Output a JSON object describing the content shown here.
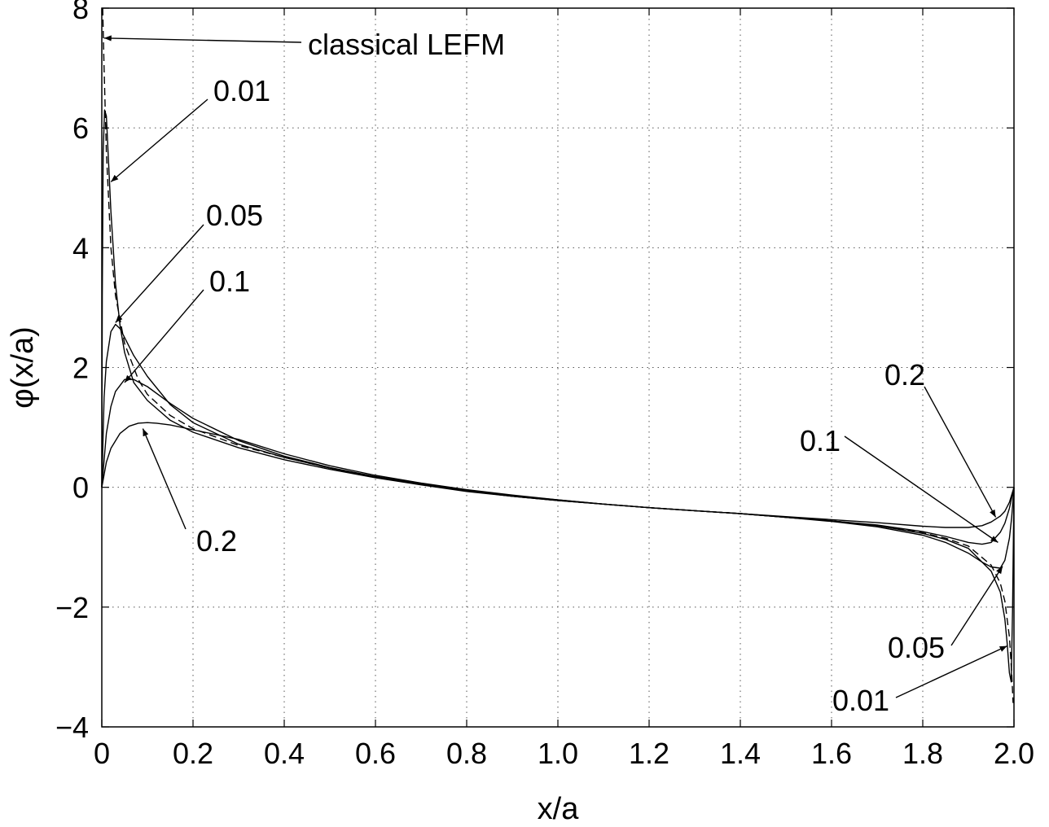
{
  "chart_data": {
    "type": "line",
    "xlabel": "x/a",
    "ylabel": "φ(x/a)",
    "xlim": [
      0,
      2
    ],
    "ylim": [
      -4,
      8
    ],
    "grid": true,
    "x_ticks": [
      {
        "value": 0,
        "label": "0"
      },
      {
        "value": 0.2,
        "label": "0.2"
      },
      {
        "value": 0.4,
        "label": "0.4"
      },
      {
        "value": 0.6,
        "label": "0.6"
      },
      {
        "value": 0.8,
        "label": "0.8"
      },
      {
        "value": 1.0,
        "label": "1.0"
      },
      {
        "value": 1.2,
        "label": "1.2"
      },
      {
        "value": 1.4,
        "label": "1.4"
      },
      {
        "value": 1.6,
        "label": "1.6"
      },
      {
        "value": 1.8,
        "label": "1.8"
      },
      {
        "value": 2.0,
        "label": "2.0"
      }
    ],
    "y_ticks": [
      {
        "value": 8,
        "label": "8"
      },
      {
        "value": 6,
        "label": "6"
      },
      {
        "value": 4,
        "label": "4"
      },
      {
        "value": 2,
        "label": "2"
      },
      {
        "value": 0,
        "label": "0"
      },
      {
        "value": -2,
        "label": "−2"
      },
      {
        "value": -4,
        "label": "−4"
      }
    ],
    "series": [
      {
        "key": "lefm",
        "style": "dashed",
        "x": [
          0.002,
          0.005,
          0.01,
          0.02,
          0.03,
          0.05,
          0.08,
          0.1,
          0.15,
          0.2,
          0.3,
          0.4,
          0.5,
          0.6,
          0.7,
          0.8,
          0.9,
          1.0,
          1.1,
          1.2,
          1.3,
          1.4,
          1.5,
          1.6,
          1.7,
          1.8,
          1.85,
          1.9,
          1.95,
          1.97,
          1.98,
          1.99,
          1.995,
          1.998
        ],
        "y": [
          8.0,
          7.0,
          5.6,
          4.0,
          3.2,
          2.4,
          1.8,
          1.55,
          1.2,
          0.98,
          0.7,
          0.5,
          0.32,
          0.17,
          0.05,
          -0.06,
          -0.15,
          -0.22,
          -0.28,
          -0.34,
          -0.39,
          -0.44,
          -0.5,
          -0.56,
          -0.64,
          -0.76,
          -0.85,
          -0.98,
          -1.3,
          -1.6,
          -1.9,
          -2.5,
          -3.1,
          -3.6
        ]
      },
      {
        "key": "0.01",
        "style": "solid",
        "x": [
          0.0,
          0.001,
          0.003,
          0.006,
          0.01,
          0.015,
          0.02,
          0.03,
          0.04,
          0.05,
          0.07,
          0.1,
          0.15,
          0.2,
          0.3,
          0.4,
          0.5,
          0.6,
          0.7,
          0.8,
          0.9,
          1.0,
          1.1,
          1.2,
          1.3,
          1.4,
          1.5,
          1.6,
          1.7,
          1.8,
          1.85,
          1.9,
          1.95,
          1.97,
          1.98,
          1.985,
          1.99,
          1.994,
          1.997,
          2.0
        ],
        "y": [
          0.0,
          3.2,
          5.6,
          6.3,
          6.2,
          5.4,
          4.6,
          3.4,
          2.7,
          2.25,
          1.75,
          1.45,
          1.12,
          0.92,
          0.66,
          0.46,
          0.3,
          0.16,
          0.04,
          -0.07,
          -0.15,
          -0.22,
          -0.28,
          -0.34,
          -0.39,
          -0.44,
          -0.5,
          -0.56,
          -0.64,
          -0.77,
          -0.87,
          -1.02,
          -1.4,
          -1.75,
          -2.2,
          -2.6,
          -3.1,
          -3.25,
          -2.0,
          0.0
        ]
      },
      {
        "key": "0.05",
        "style": "solid",
        "x": [
          0.0,
          0.005,
          0.01,
          0.02,
          0.03,
          0.04,
          0.05,
          0.07,
          0.1,
          0.15,
          0.2,
          0.3,
          0.4,
          0.5,
          0.6,
          0.7,
          0.8,
          0.9,
          1.0,
          1.1,
          1.2,
          1.3,
          1.4,
          1.5,
          1.6,
          1.7,
          1.8,
          1.85,
          1.9,
          1.93,
          1.95,
          1.97,
          1.98,
          1.99,
          1.995,
          2.0
        ],
        "y": [
          0.0,
          1.5,
          2.1,
          2.6,
          2.72,
          2.65,
          2.5,
          2.2,
          1.85,
          1.38,
          1.08,
          0.72,
          0.5,
          0.32,
          0.17,
          0.05,
          -0.06,
          -0.15,
          -0.22,
          -0.28,
          -0.34,
          -0.39,
          -0.44,
          -0.5,
          -0.57,
          -0.66,
          -0.8,
          -0.92,
          -1.1,
          -1.25,
          -1.33,
          -1.35,
          -1.22,
          -0.85,
          -0.5,
          0.0
        ]
      },
      {
        "key": "0.1",
        "style": "solid",
        "x": [
          0.0,
          0.01,
          0.02,
          0.03,
          0.05,
          0.07,
          0.1,
          0.15,
          0.2,
          0.3,
          0.4,
          0.5,
          0.6,
          0.7,
          0.8,
          0.9,
          1.0,
          1.1,
          1.2,
          1.3,
          1.4,
          1.5,
          1.6,
          1.7,
          1.8,
          1.85,
          1.9,
          1.93,
          1.95,
          1.97,
          1.98,
          1.99,
          2.0
        ],
        "y": [
          0.0,
          0.9,
          1.35,
          1.6,
          1.8,
          1.8,
          1.68,
          1.4,
          1.15,
          0.78,
          0.52,
          0.33,
          0.18,
          0.06,
          -0.05,
          -0.14,
          -0.21,
          -0.28,
          -0.34,
          -0.39,
          -0.44,
          -0.5,
          -0.56,
          -0.63,
          -0.74,
          -0.82,
          -0.92,
          -0.95,
          -0.92,
          -0.75,
          -0.6,
          -0.35,
          0.0
        ]
      },
      {
        "key": "0.2",
        "style": "solid",
        "x": [
          0.0,
          0.01,
          0.02,
          0.04,
          0.06,
          0.08,
          0.1,
          0.12,
          0.15,
          0.2,
          0.3,
          0.4,
          0.5,
          0.6,
          0.7,
          0.8,
          0.9,
          1.0,
          1.1,
          1.2,
          1.3,
          1.4,
          1.5,
          1.6,
          1.7,
          1.8,
          1.85,
          1.9,
          1.93,
          1.95,
          1.97,
          1.98,
          1.99,
          2.0
        ],
        "y": [
          0.0,
          0.42,
          0.65,
          0.9,
          1.02,
          1.07,
          1.08,
          1.07,
          1.04,
          0.96,
          0.8,
          0.56,
          0.36,
          0.2,
          0.07,
          -0.04,
          -0.13,
          -0.21,
          -0.28,
          -0.34,
          -0.39,
          -0.44,
          -0.49,
          -0.54,
          -0.59,
          -0.65,
          -0.67,
          -0.67,
          -0.64,
          -0.58,
          -0.48,
          -0.4,
          -0.25,
          0.0
        ]
      }
    ],
    "annotations": [
      {
        "text": "classical  LEFM",
        "tip": [
          0.005,
          7.5
        ]
      },
      {
        "text": "0.01",
        "tip": [
          0.02,
          5.1
        ]
      },
      {
        "text": "0.05",
        "tip": [
          0.03,
          2.75
        ]
      },
      {
        "text": "0.1",
        "tip": [
          0.05,
          1.75
        ]
      },
      {
        "text": "0.2",
        "tip": [
          0.09,
          0.98
        ]
      },
      {
        "text": "0.2",
        "tip": [
          1.96,
          -0.5
        ]
      },
      {
        "text": "0.1",
        "tip": [
          1.965,
          -0.92
        ]
      },
      {
        "text": "0.05",
        "tip": [
          1.975,
          -1.32
        ]
      },
      {
        "text": "0.01",
        "tip": [
          1.985,
          -2.65
        ]
      }
    ]
  }
}
